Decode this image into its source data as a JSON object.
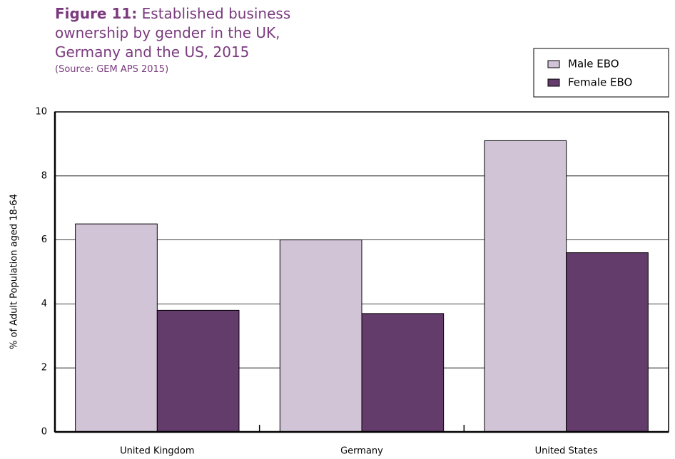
{
  "chart_data": {
    "type": "bar",
    "figure_label": "Figure 11:",
    "title": "Established business ownership by gender in the UK, Germany and the US, 2015",
    "subtitle": "(Source: GEM APS 2015)",
    "y_label": "% of Adult Population aged 18-64",
    "categories": [
      "United Kingdom",
      "Germany",
      "United States"
    ],
    "series": [
      {
        "name": "Male EBO",
        "color": "#d1c4d6",
        "values": [
          6.5,
          6.0,
          9.1
        ]
      },
      {
        "name": "Female EBO",
        "color": "#633c6b",
        "values": [
          3.8,
          3.7,
          5.6
        ]
      }
    ],
    "ylim": [
      0,
      10
    ],
    "yticks": [
      0,
      2,
      4,
      6,
      8,
      10
    ],
    "grid": true,
    "legend": "top-right"
  }
}
